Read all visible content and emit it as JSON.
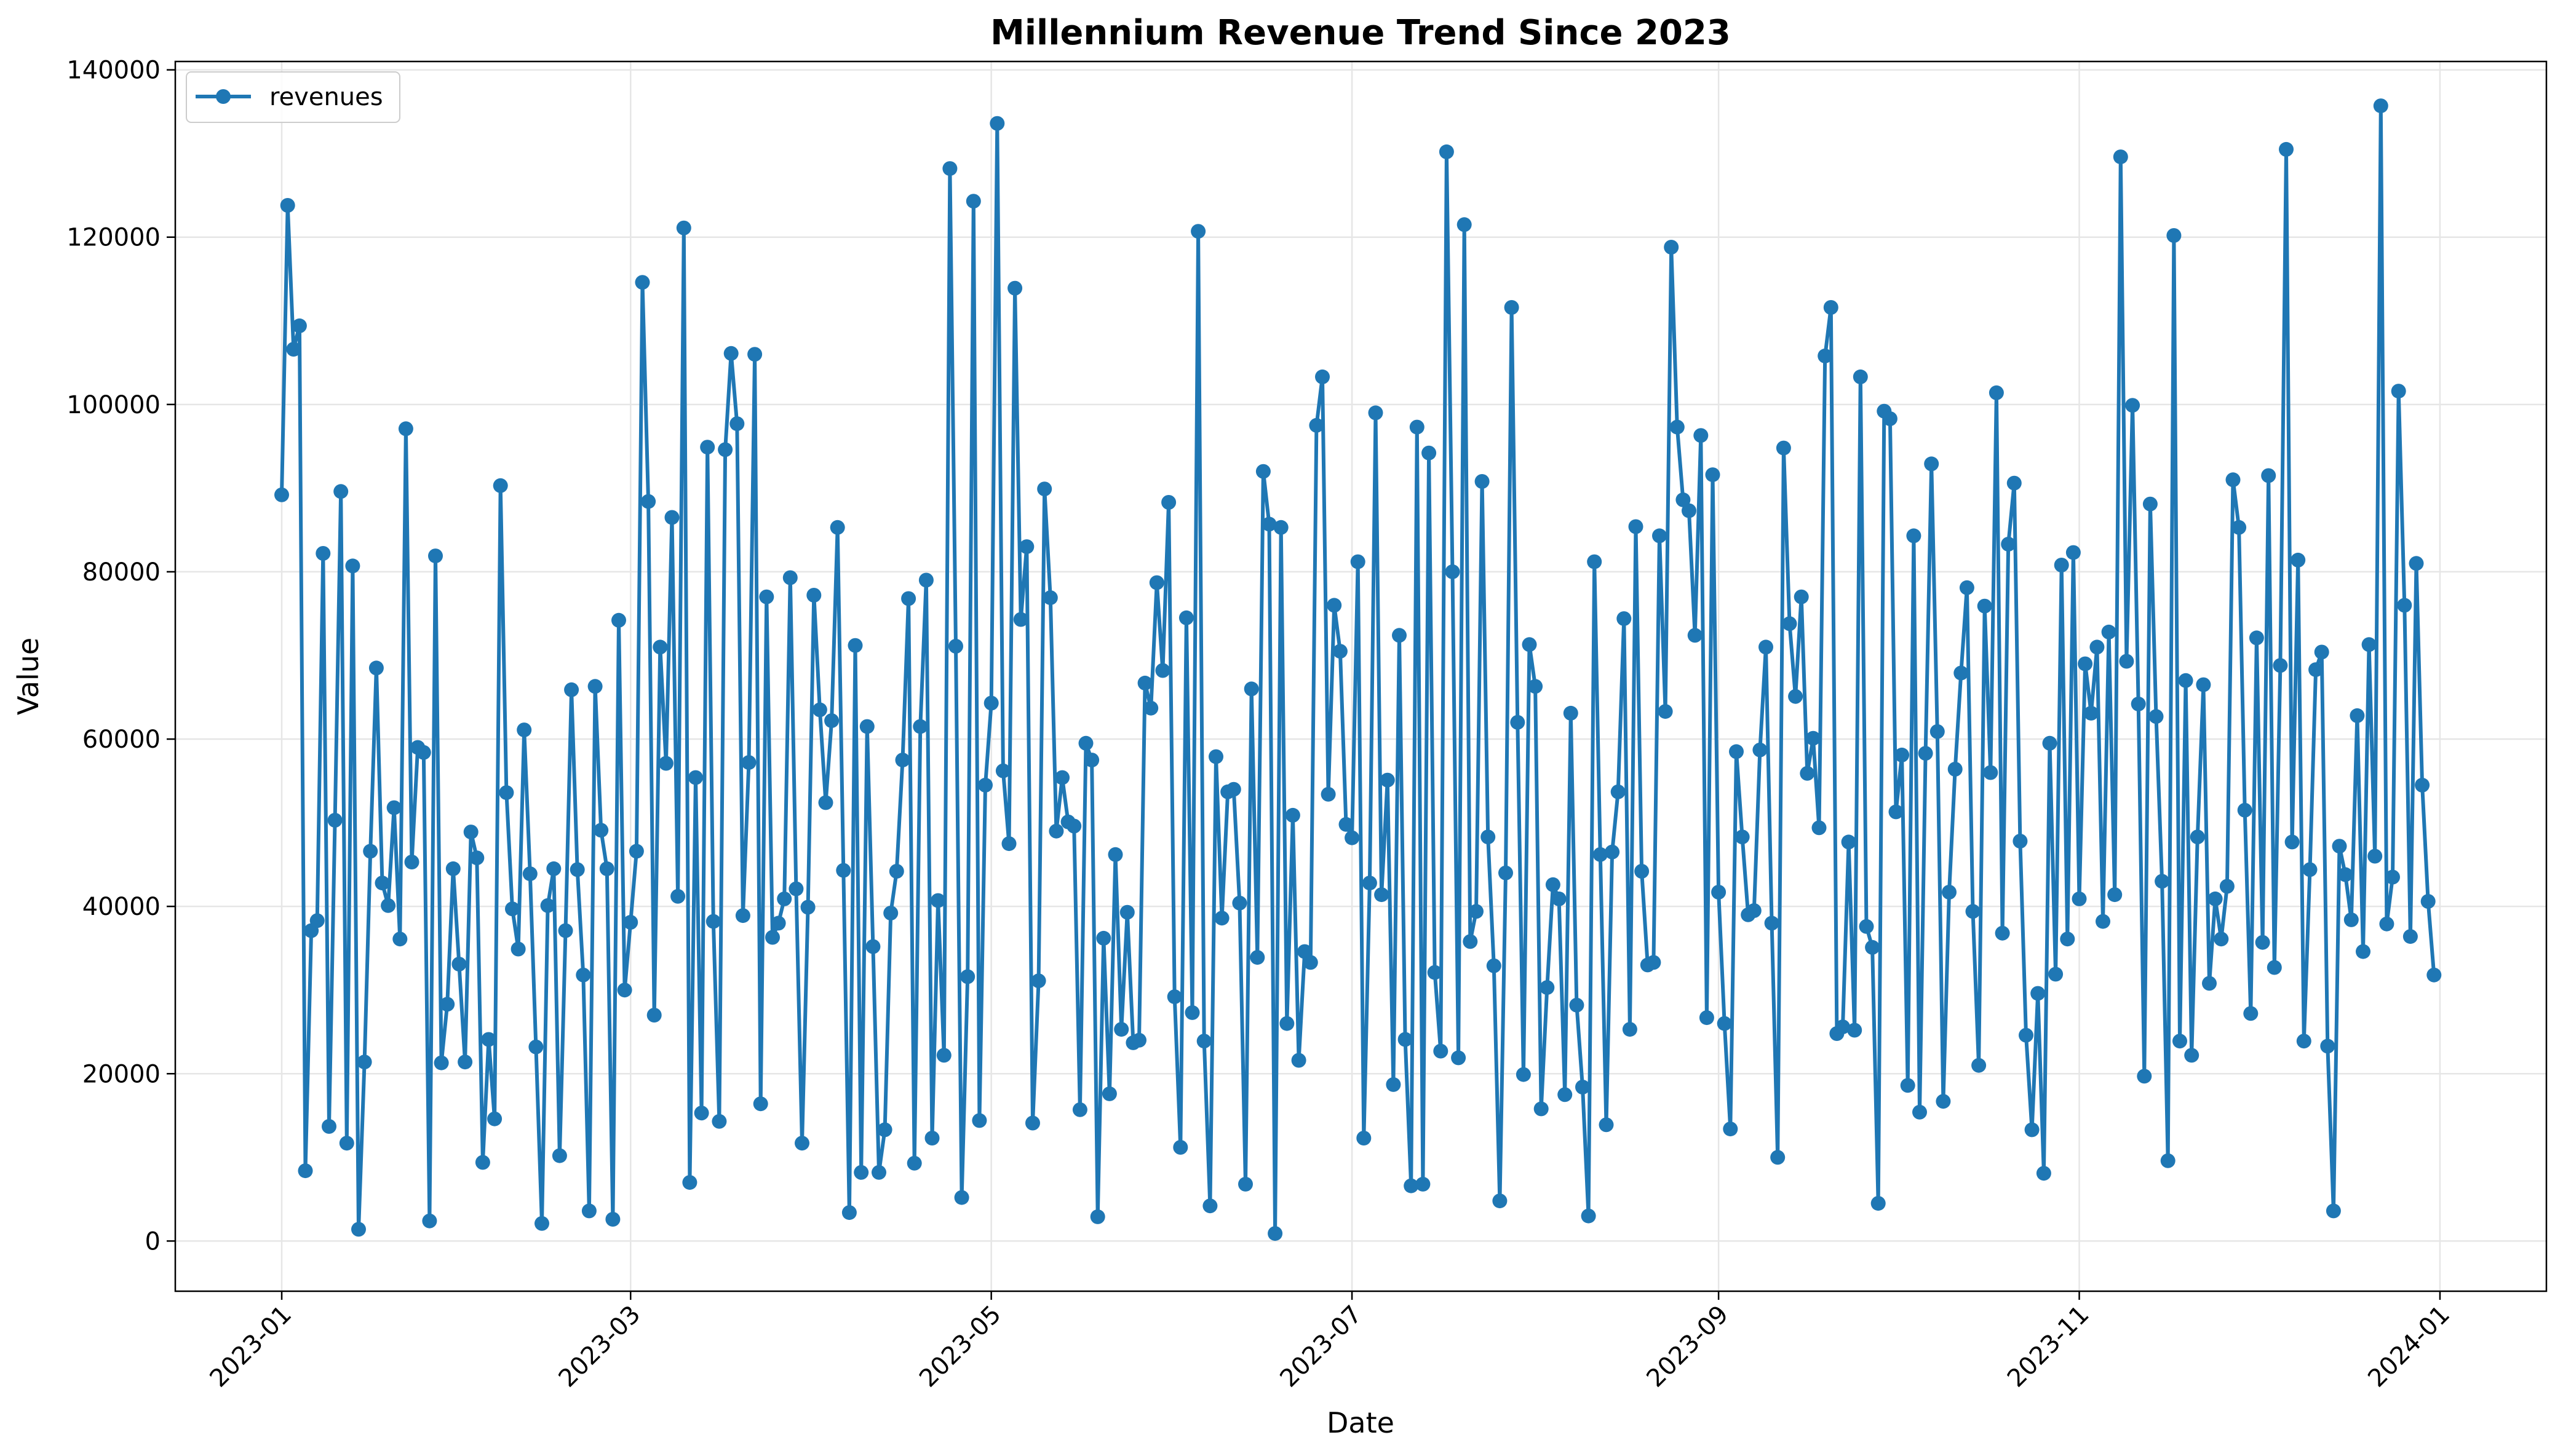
{
  "chart_data": {
    "type": "line",
    "title": "Millennium Revenue Trend Since 2023",
    "xlabel": "Date",
    "ylabel": "Value",
    "xlim": [
      "2022-12-14",
      "2024-01-19"
    ],
    "ylim": [
      -6000,
      141000
    ],
    "x_ticks": [
      "2023-01",
      "2023-03",
      "2023-05",
      "2023-07",
      "2023-09",
      "2023-11",
      "2024-01"
    ],
    "y_ticks": [
      0,
      20000,
      40000,
      60000,
      80000,
      100000,
      120000,
      140000
    ],
    "y_tick_labels": [
      "0",
      "20000",
      "40000",
      "60000",
      "80000",
      "100000",
      "120000",
      "140000"
    ],
    "grid": true,
    "legend_position": "top-left",
    "series": [
      {
        "name": "revenues",
        "color": "#1f77b4",
        "marker": "circle",
        "x_start": "2023-01-01",
        "x_step_days": 1,
        "values": [
          89200,
          123800,
          106600,
          109400,
          8400,
          37100,
          38300,
          82200,
          13700,
          50300,
          89600,
          11700,
          80700,
          1400,
          21400,
          46600,
          68500,
          42800,
          40100,
          51800,
          36100,
          97100,
          45300,
          59000,
          58400,
          2400,
          81900,
          21300,
          28300,
          44500,
          33100,
          21400,
          48900,
          45800,
          9400,
          24100,
          14600,
          90300,
          53600,
          39700,
          34900,
          61100,
          43900,
          23200,
          2100,
          40100,
          44500,
          10200,
          37100,
          65900,
          44400,
          31800,
          3600,
          66300,
          49100,
          44500,
          2600,
          74200,
          30000,
          38100,
          46600,
          114600,
          88400,
          27000,
          71000,
          57100,
          86500,
          41200,
          121100,
          7000,
          55400,
          15300,
          94900,
          38200,
          14300,
          94600,
          106100,
          97700,
          38900,
          57200,
          106000,
          16400,
          77000,
          36300,
          38000,
          40900,
          79300,
          42100,
          11700,
          39900,
          77200,
          63500,
          52400,
          62200,
          85300,
          44300,
          3400,
          71200,
          8200,
          61500,
          35200,
          8200,
          13300,
          39200,
          44200,
          57500,
          76800,
          9300,
          61500,
          79000,
          12300,
          40700,
          22200,
          128200,
          71100,
          5200,
          31600,
          124300,
          14400,
          54500,
          64300,
          133600,
          56200,
          47500,
          113900,
          74300,
          83000,
          14100,
          31100,
          89900,
          76900,
          49000,
          55400,
          50100,
          49600,
          15700,
          59500,
          57500,
          2900,
          36200,
          17600,
          46200,
          25300,
          39300,
          23700,
          24000,
          66700,
          63700,
          78700,
          68200,
          88300,
          29200,
          11200,
          74500,
          27300,
          120700,
          23900,
          4200,
          57900,
          38600,
          53700,
          54000,
          40400,
          6800,
          66000,
          33900,
          92000,
          85700,
          900,
          85300,
          26000,
          50900,
          21600,
          34600,
          33300,
          97500,
          103300,
          53400,
          76000,
          70500,
          49800,
          48200,
          81200,
          12300,
          42800,
          99000,
          41400,
          55100,
          18700,
          72400,
          24100,
          6600,
          97300,
          6800,
          94200,
          32100,
          22700,
          130200,
          80000,
          21900,
          121500,
          35800,
          39400,
          90800,
          48300,
          32900,
          4800,
          44000,
          111600,
          62000,
          19900,
          71300,
          66300,
          15800,
          30300,
          42600,
          40900,
          17500,
          63100,
          28200,
          18400,
          3000,
          81200,
          46200,
          13900,
          46500,
          53700,
          74400,
          25300,
          85400,
          44200,
          33000,
          33300,
          84300,
          63300,
          118800,
          97300,
          88600,
          87300,
          72400,
          96300,
          26700,
          91600,
          41700,
          26000,
          13400,
          58500,
          48300,
          39000,
          39500,
          58700,
          71000,
          38000,
          10000,
          94800,
          73800,
          65100,
          77000,
          55900,
          60100,
          49400,
          105800,
          111600,
          24800,
          25600,
          47700,
          25200,
          103300,
          37600,
          35100,
          4500,
          99200,
          98300,
          51300,
          58100,
          18600,
          84300,
          15400,
          58300,
          92900,
          60900,
          16700,
          41700,
          56400,
          67900,
          78100,
          39400,
          21000,
          75900,
          56000,
          101400,
          36800,
          83300,
          90600,
          47800,
          24600,
          13300,
          29600,
          8100,
          59500,
          31900,
          80800,
          36100,
          82300,
          40900,
          69000,
          63100,
          71000,
          38200,
          72800,
          41400,
          129600,
          69300,
          99900,
          64200,
          19700,
          88100,
          62700,
          43000,
          9600,
          120200,
          23900,
          67000,
          22200,
          48300,
          66500,
          30800,
          40900,
          36100,
          42400,
          91000,
          85300,
          51500,
          27200,
          72100,
          35700,
          91500,
          32700,
          68800,
          130500,
          47700,
          81400,
          23900,
          44400,
          68300,
          70400,
          23300,
          3600,
          47200,
          43800,
          38400,
          62800,
          34600,
          71300,
          46000,
          135700,
          37900,
          43500,
          101600,
          76000,
          36400,
          81000,
          54500,
          40600,
          31800
        ]
      }
    ]
  }
}
